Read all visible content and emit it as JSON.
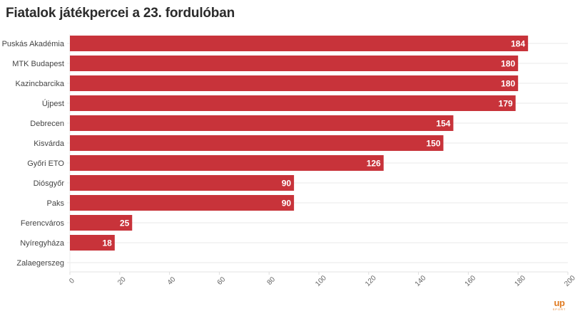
{
  "chart_data": {
    "type": "bar",
    "orientation": "horizontal",
    "title": "Fiatalok játékpercei a 23. fordulóban",
    "xlabel": "",
    "ylabel": "",
    "categories": [
      "Puskás Akadémia",
      "MTK Budapest",
      "Kazincbarcika",
      "Újpest",
      "Debrecen",
      "Kisvárda",
      "Győri ETO",
      "Diósgyőr",
      "Paks",
      "Ferencváros",
      "Nyíregyháza",
      "Zalaegerszeg"
    ],
    "values": [
      184,
      180,
      180,
      179,
      154,
      150,
      126,
      90,
      90,
      25,
      18,
      0
    ],
    "xlim": [
      0,
      200
    ],
    "xticks": [
      0,
      20,
      40,
      60,
      80,
      100,
      120,
      140,
      160,
      180,
      200
    ],
    "grid": true,
    "bar_color": "#c8333a",
    "data_labels": true
  },
  "logo": {
    "main": "up",
    "sub": "SPORT",
    "color": "#e07b22"
  }
}
